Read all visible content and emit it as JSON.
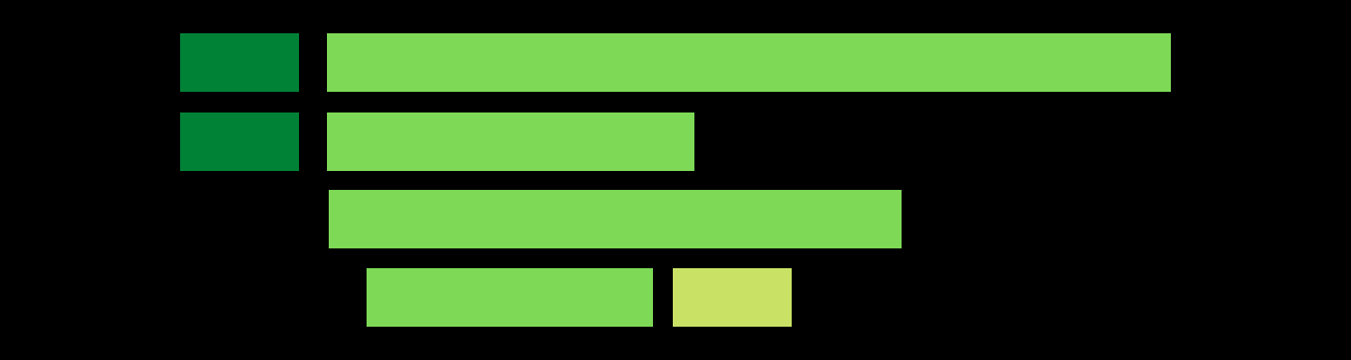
{
  "colors": {
    "background": "#000000",
    "dark_green": "#008236",
    "light_green": "#7ED957",
    "yellow_green": "#C9E265"
  },
  "rows": [
    {
      "blocks": [
        {
          "color": "dark_green"
        },
        {
          "color": "light_green"
        }
      ]
    },
    {
      "blocks": [
        {
          "color": "dark_green"
        },
        {
          "color": "light_green"
        }
      ]
    },
    {
      "blocks": [
        {
          "color": "light_green"
        }
      ]
    },
    {
      "blocks": [
        {
          "color": "light_green"
        },
        {
          "color": "yellow_green"
        }
      ]
    }
  ]
}
